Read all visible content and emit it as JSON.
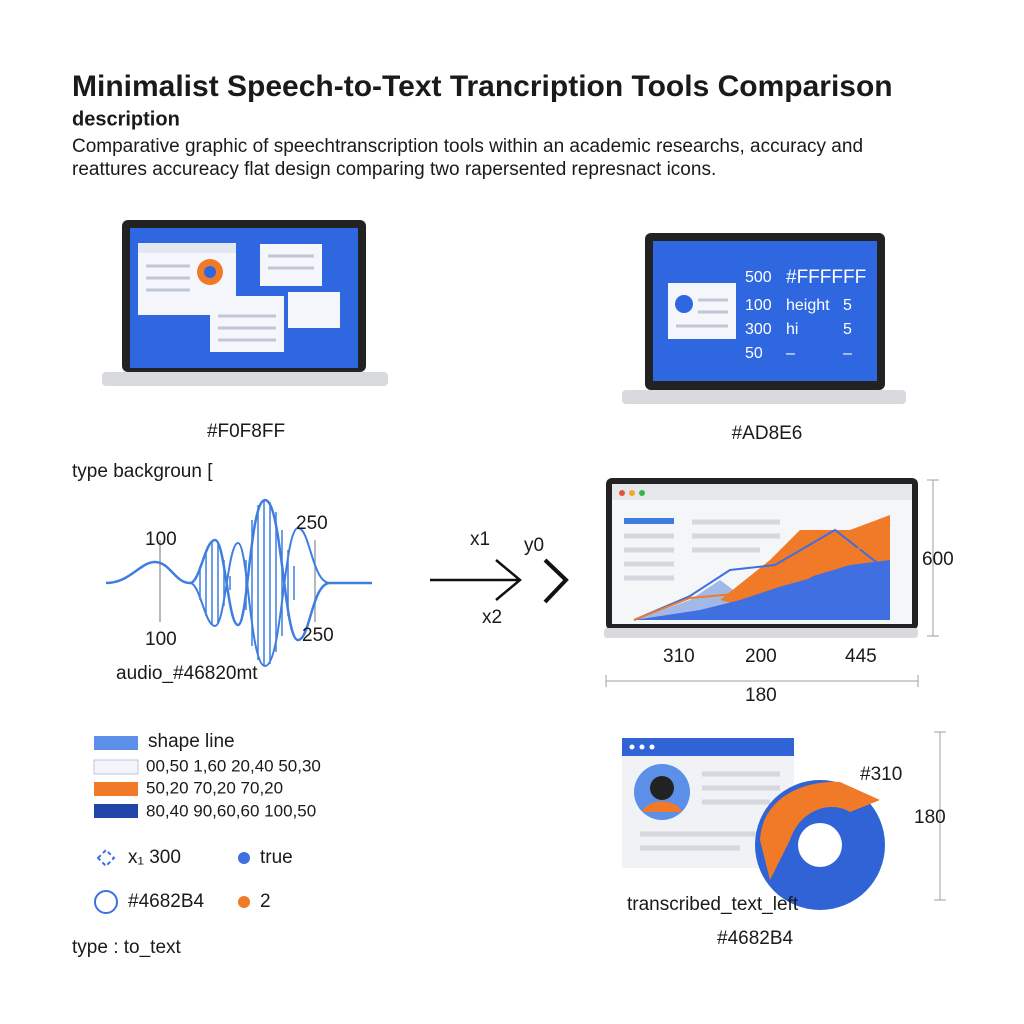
{
  "header": {
    "title": "Minimalist Speech-to-Text Trancription Tools Comparison",
    "subtitle": "description",
    "description": [
      "Comparative graphic of speechtranscription tools within an academic researchs, accuracy and",
      "reattures accureacy flat design comparing two rapersented represnact icons."
    ]
  },
  "laptop_left": {
    "caption": "#F0F8FF"
  },
  "laptop_right": {
    "rows": [
      [
        "500",
        "#FFFFFF",
        ""
      ],
      [
        "100",
        "height",
        "5"
      ],
      [
        "300",
        "hi",
        "5"
      ],
      [
        "50",
        "–",
        "–"
      ]
    ],
    "caption": "#AD8E6"
  },
  "waveform": {
    "heading": "type backgroun [",
    "labels": [
      "100",
      "250",
      "100",
      "250"
    ],
    "caption": "audio_#46820mt"
  },
  "arrow": {
    "labels": [
      "x1",
      "y0",
      "x2"
    ]
  },
  "chart_laptop": {
    "height_label": "600",
    "x_labels": [
      "310",
      "200",
      "445"
    ],
    "width_label": "180"
  },
  "legend": {
    "items": [
      "shape line",
      "00,50 1,60 20,40 50,30",
      "50,20 70,20 70,20",
      "80,40 90,60,60 100,50"
    ]
  },
  "options": {
    "items": [
      "x₁ 300",
      "true",
      "#4682B4",
      "2"
    ],
    "footer": "type : to_text"
  },
  "output": {
    "labels": [
      "#310",
      "180"
    ],
    "caption": "transcribed_text_left",
    "color": "#4682B4"
  }
}
